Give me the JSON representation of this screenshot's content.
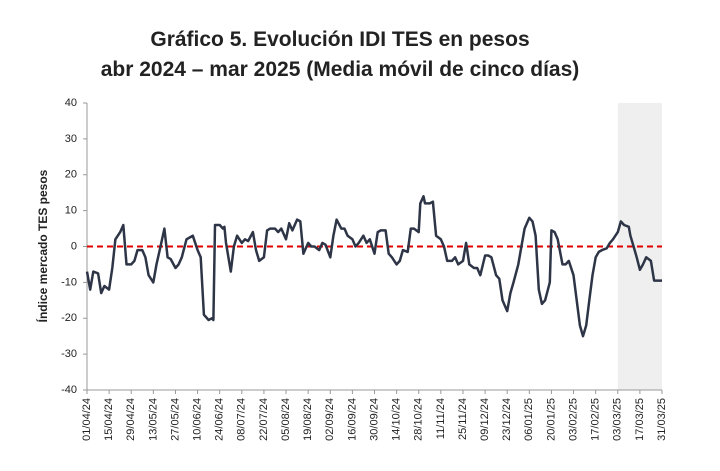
{
  "chart_data": {
    "type": "line",
    "title": [
      "Gráfico 5. Evolución IDI TES en pesos",
      "abr 2024 – mar 2025 (Media móvil de cinco días)"
    ],
    "y_label": "Índice mercado TES pesos",
    "x": [
      "01/04/24",
      "03/04/24",
      "05/04/24",
      "08/04/24",
      "10/04/24",
      "12/04/24",
      "15/04/24",
      "17/04/24",
      "19/04/24",
      "22/04/24",
      "24/04/24",
      "26/04/24",
      "29/04/24",
      "01/05/24",
      "03/05/24",
      "06/05/24",
      "08/05/24",
      "10/05/24",
      "13/05/24",
      "15/05/24",
      "17/05/24",
      "20/05/24",
      "22/05/24",
      "24/05/24",
      "27/05/24",
      "29/05/24",
      "31/05/24",
      "03/06/24",
      "05/06/24",
      "07/06/24",
      "10/06/24",
      "12/06/24",
      "14/06/24",
      "17/06/24",
      "19/06/24",
      "20/06/24",
      "21/06/24",
      "24/06/24",
      "26/06/24",
      "27/06/24",
      "28/06/24",
      "01/07/24",
      "03/07/24",
      "05/07/24",
      "08/07/24",
      "10/07/24",
      "12/07/24",
      "15/07/24",
      "17/07/24",
      "19/07/24",
      "22/07/24",
      "24/07/24",
      "26/07/24",
      "29/07/24",
      "31/07/24",
      "02/08/24",
      "05/08/24",
      "07/08/24",
      "09/08/24",
      "12/08/24",
      "14/08/24",
      "16/08/24",
      "19/08/24",
      "21/08/24",
      "23/08/24",
      "26/08/24",
      "28/08/24",
      "30/08/24",
      "02/09/24",
      "04/09/24",
      "06/09/24",
      "09/09/24",
      "11/09/24",
      "13/09/24",
      "16/09/24",
      "18/09/24",
      "20/09/24",
      "23/09/24",
      "25/09/24",
      "27/09/24",
      "30/09/24",
      "02/10/24",
      "04/10/24",
      "07/10/24",
      "09/10/24",
      "11/10/24",
      "14/10/24",
      "16/10/24",
      "18/10/24",
      "21/10/24",
      "23/10/24",
      "25/10/24",
      "28/10/24",
      "29/10/24",
      "31/10/24",
      "01/11/24",
      "04/11/24",
      "06/11/24",
      "08/11/24",
      "11/11/24",
      "13/11/24",
      "15/11/24",
      "18/11/24",
      "20/11/24",
      "22/11/24",
      "25/11/24",
      "27/11/24",
      "29/11/24",
      "02/12/24",
      "04/12/24",
      "06/12/24",
      "09/12/24",
      "11/12/24",
      "13/12/24",
      "16/12/24",
      "18/12/24",
      "20/12/24",
      "23/12/24",
      "25/12/24",
      "27/12/24",
      "30/12/24",
      "01/01/25",
      "03/01/25",
      "06/01/25",
      "08/01/25",
      "10/01/25",
      "12/01/25",
      "14/01/25",
      "16/01/25",
      "19/01/25",
      "20/01/25",
      "22/01/25",
      "24/01/25",
      "27/01/25",
      "29/01/25",
      "31/01/25",
      "03/02/25",
      "05/02/25",
      "07/02/25",
      "09/02/25",
      "11/02/25",
      "13/02/25",
      "15/02/25",
      "17/02/25",
      "19/02/25",
      "21/02/25",
      "24/02/25",
      "26/02/25",
      "28/02/25",
      "03/03/25",
      "05/03/25",
      "07/03/25",
      "10/03/25",
      "11/03/25",
      "13/03/25",
      "15/03/25",
      "17/03/25",
      "19/03/25",
      "21/03/25",
      "24/03/25",
      "26/03/25",
      "28/03/25",
      "31/03/25"
    ],
    "series": [
      {
        "color": "#2e3547",
        "values": [
          -7,
          -12,
          -7,
          -7.5,
          -13,
          -11,
          -12,
          -6,
          2,
          4,
          6,
          -5,
          -5,
          -4,
          -1,
          -1,
          -3,
          -8,
          -10,
          -5,
          -1,
          5,
          -3,
          -3.5,
          -6,
          -5,
          -3,
          2,
          2.5,
          3,
          -1,
          -3,
          -19,
          -20.5,
          -20,
          -20.5,
          6,
          6,
          5,
          5.5,
          1,
          -7,
          0,
          3,
          1,
          2,
          1.5,
          4,
          -1,
          -4,
          -3,
          4.5,
          5,
          5,
          4,
          5,
          2,
          6.5,
          4.5,
          7.5,
          7,
          -2,
          1,
          0,
          0,
          -1,
          1,
          0.5,
          -3,
          3,
          7.5,
          5,
          5,
          3,
          2,
          0,
          1,
          3,
          1,
          2,
          -2,
          4,
          4.5,
          4.5,
          -2,
          -3,
          -5,
          -4,
          -1,
          -1.5,
          5,
          5,
          4,
          12,
          14,
          12,
          12,
          12.5,
          3,
          2,
          0,
          -4,
          -4,
          -3,
          -5,
          -4,
          1,
          -5,
          -6,
          -6,
          -8,
          -2.5,
          -2.5,
          -3,
          -8,
          -9,
          -15,
          -18,
          -13,
          -10,
          -5,
          0,
          5,
          8,
          7,
          3,
          -12,
          -16,
          -15,
          -10,
          4.5,
          4,
          2,
          -5,
          -5,
          -4,
          -8,
          -15,
          -22,
          -25,
          -22,
          -15,
          -8,
          -3,
          -1.5,
          -1,
          -0.5,
          1,
          2,
          4,
          7,
          6,
          5.5,
          3,
          0,
          -3,
          -6.5,
          -5,
          -3,
          -4,
          -9.5,
          -9.5,
          -9.5
        ]
      }
    ],
    "xticks": [
      "01/04/24",
      "15/04/24",
      "29/04/24",
      "13/05/24",
      "27/05/24",
      "10/06/24",
      "24/06/24",
      "08/07/24",
      "22/07/24",
      "05/08/24",
      "19/08/24",
      "02/09/24",
      "16/09/24",
      "30/09/24",
      "14/10/24",
      "28/10/24",
      "11/11/24",
      "25/11/24",
      "09/12/24",
      "23/12/24",
      "06/01/25",
      "20/01/25",
      "03/02/25",
      "17/02/25",
      "03/03/25",
      "17/03/25",
      "31/03/25"
    ],
    "xlim": [
      "01/04/24",
      "31/03/25"
    ],
    "ylim": [
      -40,
      40
    ],
    "yticks": [
      -40,
      -30,
      -20,
      -10,
      0,
      10,
      20,
      30,
      40
    ],
    "reference_line": {
      "value": 0,
      "color": "#e00000"
    },
    "shaded_range": {
      "from": "03/03/25",
      "to": "31/03/25",
      "color": "#efefef"
    }
  }
}
